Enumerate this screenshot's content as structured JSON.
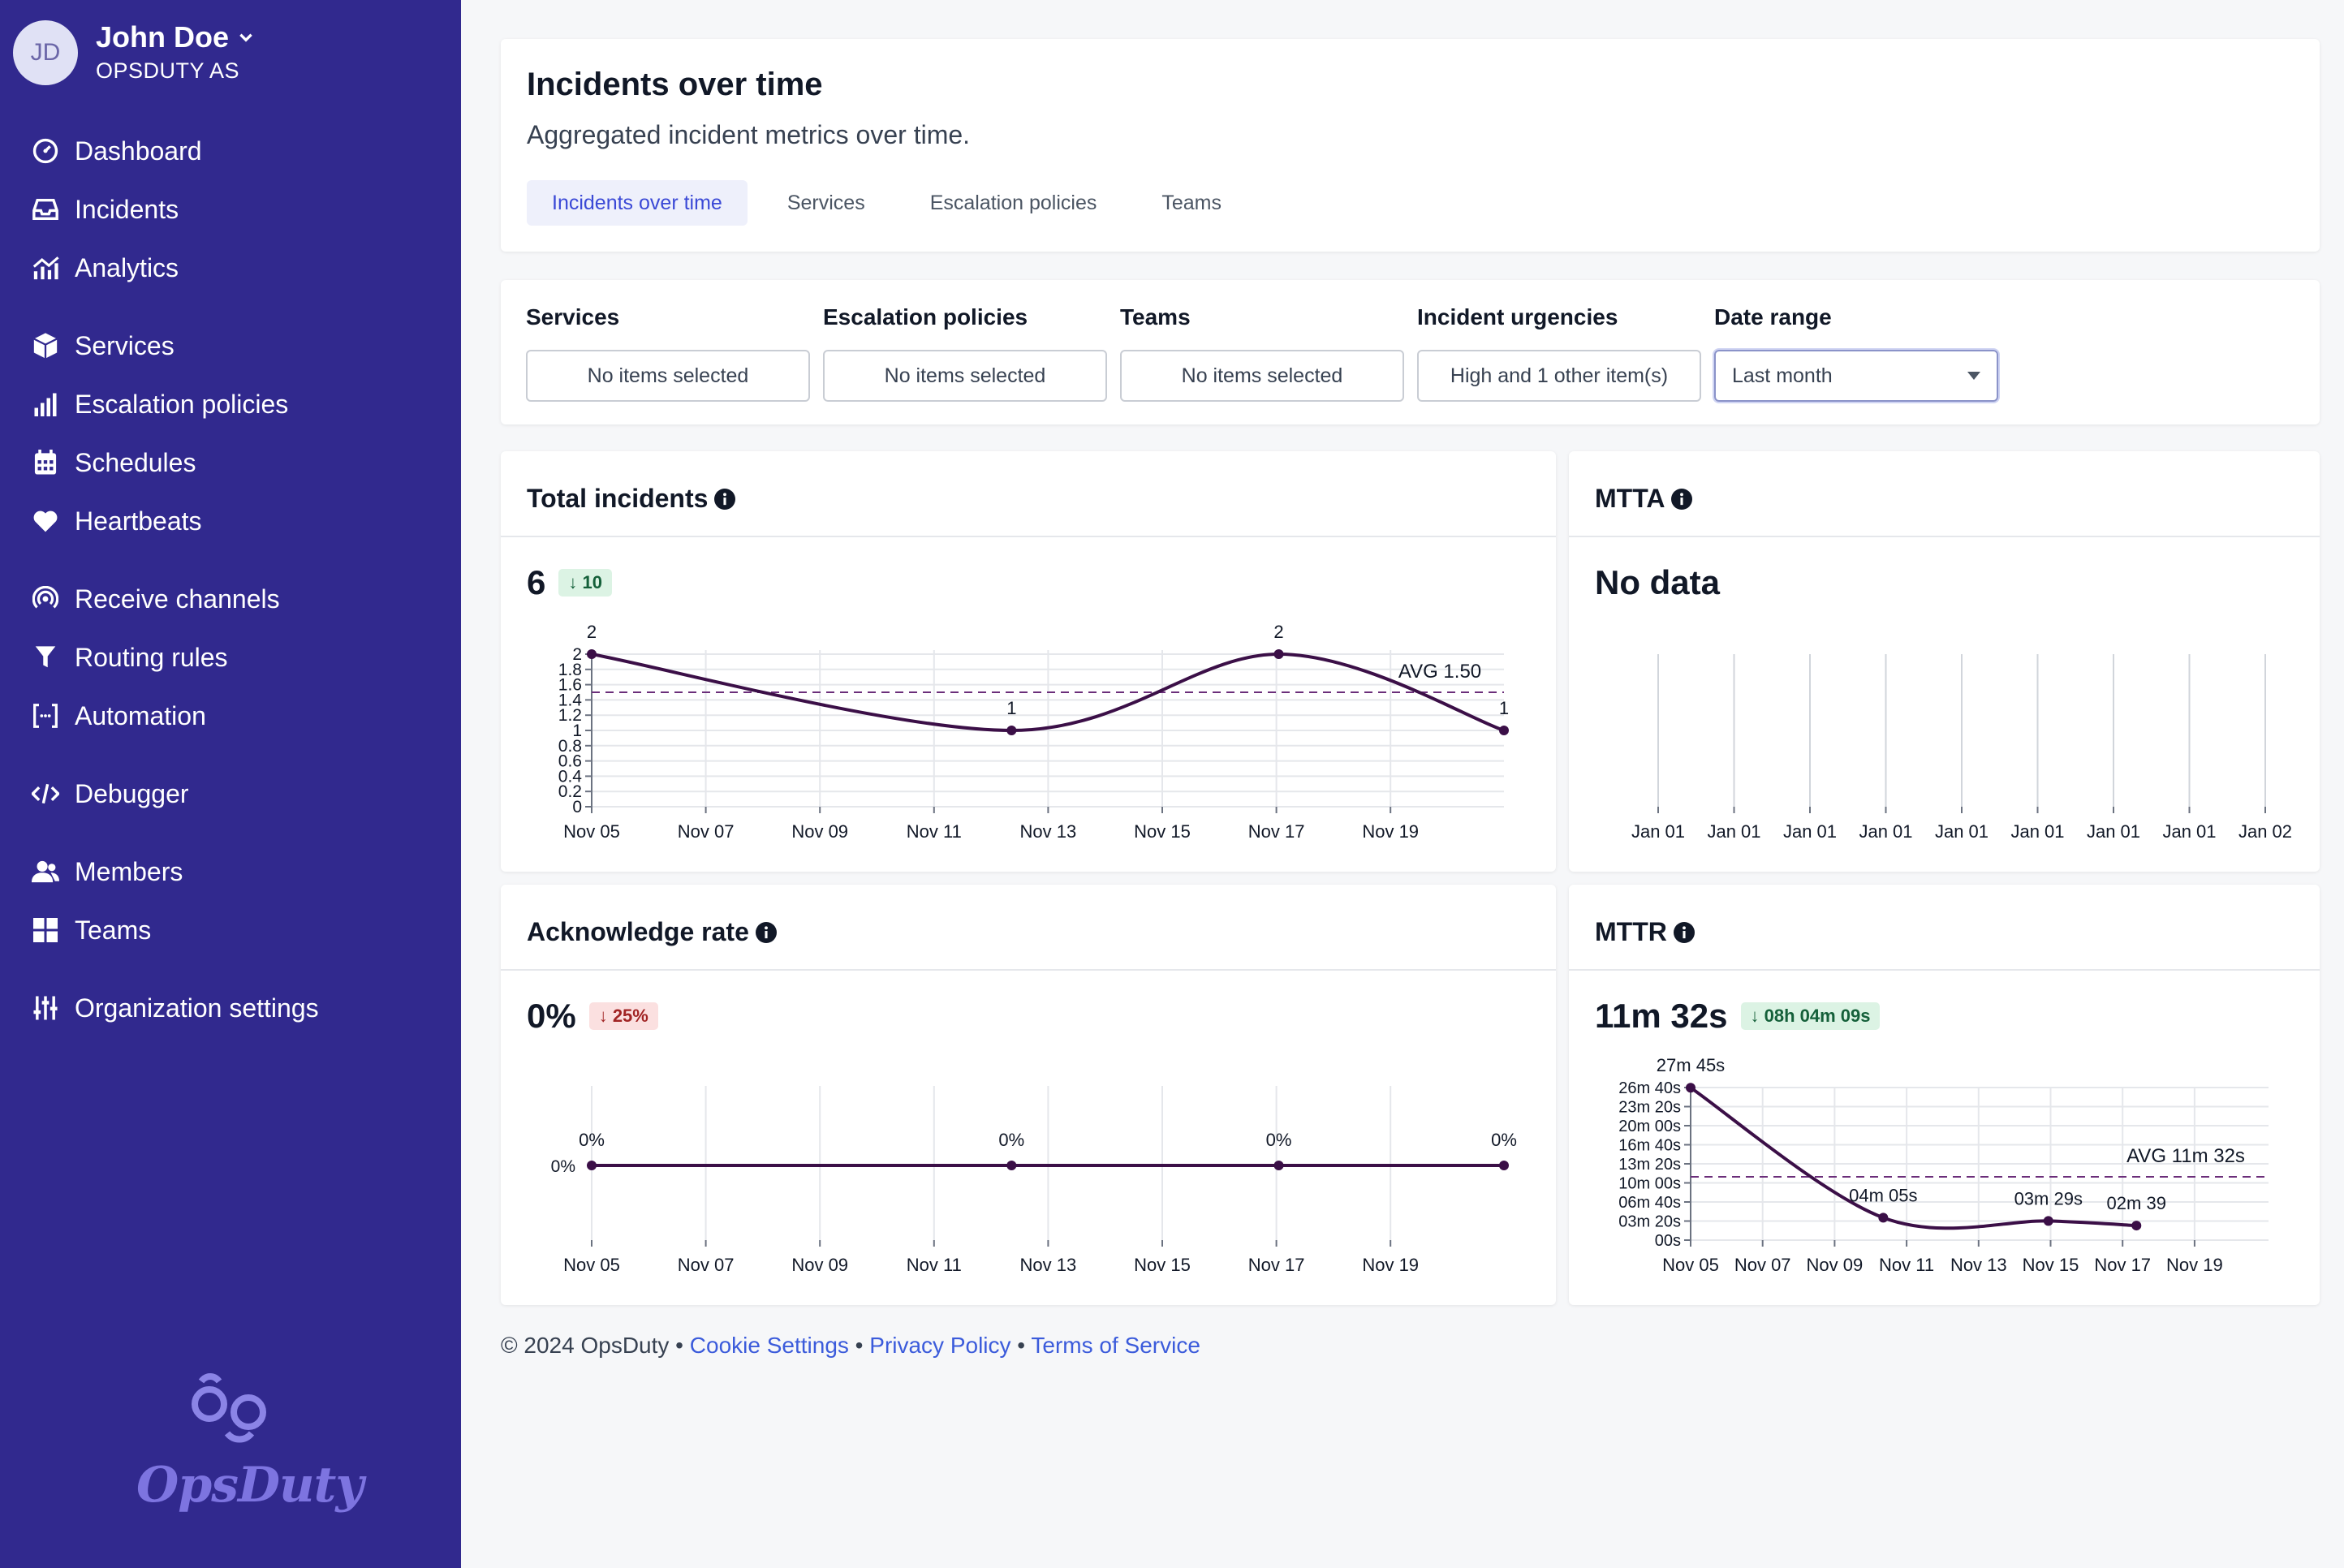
{
  "user": {
    "initials": "JD",
    "name": "John Doe",
    "org": "OPSDUTY AS"
  },
  "nav": {
    "dashboard": "Dashboard",
    "incidents": "Incidents",
    "analytics": "Analytics",
    "services": "Services",
    "escalation": "Escalation policies",
    "schedules": "Schedules",
    "heartbeats": "Heartbeats",
    "receive": "Receive channels",
    "routing": "Routing rules",
    "automation": "Automation",
    "debugger": "Debugger",
    "members": "Members",
    "teams": "Teams",
    "org_settings": "Organization settings"
  },
  "logo_text": "OpsDuty",
  "header": {
    "title": "Incidents over time",
    "subtitle": "Aggregated incident metrics over time.",
    "tabs": [
      "Incidents over time",
      "Services",
      "Escalation policies",
      "Teams"
    ]
  },
  "filters": {
    "services": {
      "label": "Services",
      "value": "No items selected"
    },
    "escalation": {
      "label": "Escalation policies",
      "value": "No items selected"
    },
    "teams": {
      "label": "Teams",
      "value": "No items selected"
    },
    "urgencies": {
      "label": "Incident urgencies",
      "value": "High and 1 other item(s)"
    },
    "date_range": {
      "label": "Date range",
      "value": "Last month"
    }
  },
  "cards": {
    "total": {
      "title": "Total incidents",
      "value": "6",
      "delta": "↓ 10"
    },
    "mtta": {
      "title": "MTTA",
      "value": "No data"
    },
    "ack": {
      "title": "Acknowledge rate",
      "value": "0%",
      "delta": "↓ 25%"
    },
    "mttr": {
      "title": "MTTR",
      "value": "11m 32s",
      "delta": "↓ 08h 04m 09s"
    }
  },
  "footer": {
    "copyright": "© 2024 OpsDuty",
    "cookie": "Cookie Settings",
    "privacy": "Privacy Policy",
    "terms": "Terms of Service"
  },
  "colors": {
    "sidebar": "#31298e",
    "line": "#3b0f47",
    "link": "#3b5bdb"
  },
  "chart_data": [
    {
      "id": "total",
      "type": "line",
      "title": "Total incidents",
      "x": [
        0,
        11,
        18,
        23.9
      ],
      "values": [
        2,
        1,
        2,
        1
      ],
      "point_labels": [
        "2",
        "1",
        "2",
        "1"
      ],
      "xticks": [
        "Nov 05",
        "Nov 07",
        "Nov 09",
        "Nov 11",
        "Nov 13",
        "Nov 15",
        "Nov 17",
        "Nov 19"
      ],
      "yticks": [
        "0",
        "0.2",
        "0.4",
        "0.6",
        "0.8",
        "1",
        "1.2",
        "1.4",
        "1.6",
        "1.8",
        "2"
      ],
      "ylim": [
        0,
        2
      ],
      "avg": 1.5,
      "avg_label": "AVG 1.50"
    },
    {
      "id": "mtta",
      "type": "line",
      "title": "MTTA",
      "xticks": [
        "Jan 01",
        "Jan 01",
        "Jan 01",
        "Jan 01",
        "Jan 01",
        "Jan 01",
        "Jan 01",
        "Jan 01",
        "Jan 02"
      ],
      "values": []
    },
    {
      "id": "ack",
      "type": "line",
      "title": "Acknowledge rate",
      "x": [
        0,
        11,
        18,
        23.9
      ],
      "values": [
        0,
        0,
        0,
        0
      ],
      "point_labels": [
        "0%",
        "0%",
        "0%",
        "0%"
      ],
      "xticks": [
        "Nov 05",
        "Nov 07",
        "Nov 09",
        "Nov 11",
        "Nov 13",
        "Nov 15",
        "Nov 17",
        "Nov 19"
      ],
      "yticks": [
        "0%"
      ],
      "ylim": [
        0,
        1
      ]
    },
    {
      "id": "mttr",
      "type": "line",
      "title": "MTTR",
      "x": [
        0,
        7,
        13,
        16.2
      ],
      "values": [
        1665,
        245,
        209,
        159
      ],
      "point_labels": [
        "27m 45s",
        "04m 05s",
        "03m 29s",
        "02m 39"
      ],
      "xticks": [
        "Nov 05",
        "Nov 07",
        "Nov 09",
        "Nov 11",
        "Nov 13",
        "Nov 15",
        "Nov 17",
        "Nov 19"
      ],
      "yticks": [
        "00s",
        "03m 20s",
        "06m 40s",
        "10m 00s",
        "13m 20s",
        "16m 40s",
        "20m 00s",
        "23m 20s",
        "26m 40s"
      ],
      "ylim": [
        0,
        1667
      ],
      "avg": 692,
      "avg_label": "AVG 11m 32s"
    }
  ]
}
